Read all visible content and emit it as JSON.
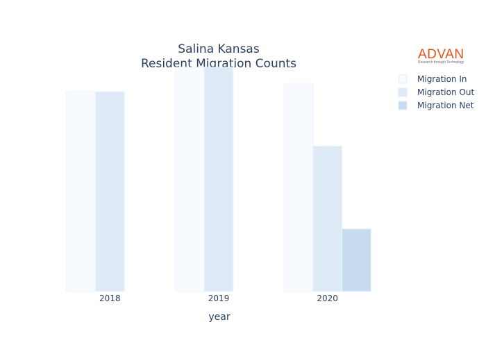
{
  "chart_data": {
    "type": "bar",
    "title_lines": [
      "Salina Kansas",
      "Resident Migration Counts"
    ],
    "xlabel": "year",
    "ylabel": "",
    "categories": [
      "2018",
      "2019",
      "2020"
    ],
    "ylim": [
      0,
      1000
    ],
    "grid": false,
    "legend_position": "top-right",
    "series": [
      {
        "name": "Migration In",
        "color": "#f7fbff",
        "values": [
          900,
          1010,
          937
        ]
      },
      {
        "name": "Migration Out",
        "color": "#deebf7",
        "values": [
          900,
          1010,
          655
        ]
      },
      {
        "name": "Migration Net",
        "color": "#c6dbef",
        "values": [
          0,
          0,
          282
        ]
      }
    ]
  },
  "logo": {
    "name": "ADVAN",
    "tagline": "Research through Technology"
  }
}
